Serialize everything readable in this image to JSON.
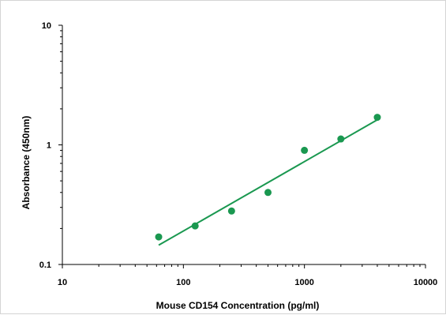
{
  "chart_data": {
    "type": "scatter",
    "title": "",
    "xlabel": "Mouse CD154 Concentration (pg/ml)",
    "ylabel": "Absorbance (450nm)",
    "x_scale": "log",
    "y_scale": "log",
    "xlim": [
      10,
      10000
    ],
    "ylim": [
      0.1,
      10
    ],
    "x_ticks": [
      "10",
      "100",
      "1000",
      "10000"
    ],
    "y_ticks": [
      "10",
      "1",
      "0.1"
    ],
    "grid": false,
    "legend": "none",
    "series": [
      {
        "points": [
          {
            "x": 62.5,
            "y": 0.17
          },
          {
            "x": 125,
            "y": 0.21
          },
          {
            "x": 250,
            "y": 0.28
          },
          {
            "x": 500,
            "y": 0.4
          },
          {
            "x": 1000,
            "y": 0.9
          },
          {
            "x": 2000,
            "y": 1.12
          },
          {
            "x": 4000,
            "y": 1.7
          }
        ],
        "color": "#1a9850"
      }
    ],
    "fit_line": {
      "from": {
        "x": 62.5,
        "y": 0.145
      },
      "to": {
        "x": 4000,
        "y": 1.62
      },
      "color": "#1a9850"
    }
  }
}
